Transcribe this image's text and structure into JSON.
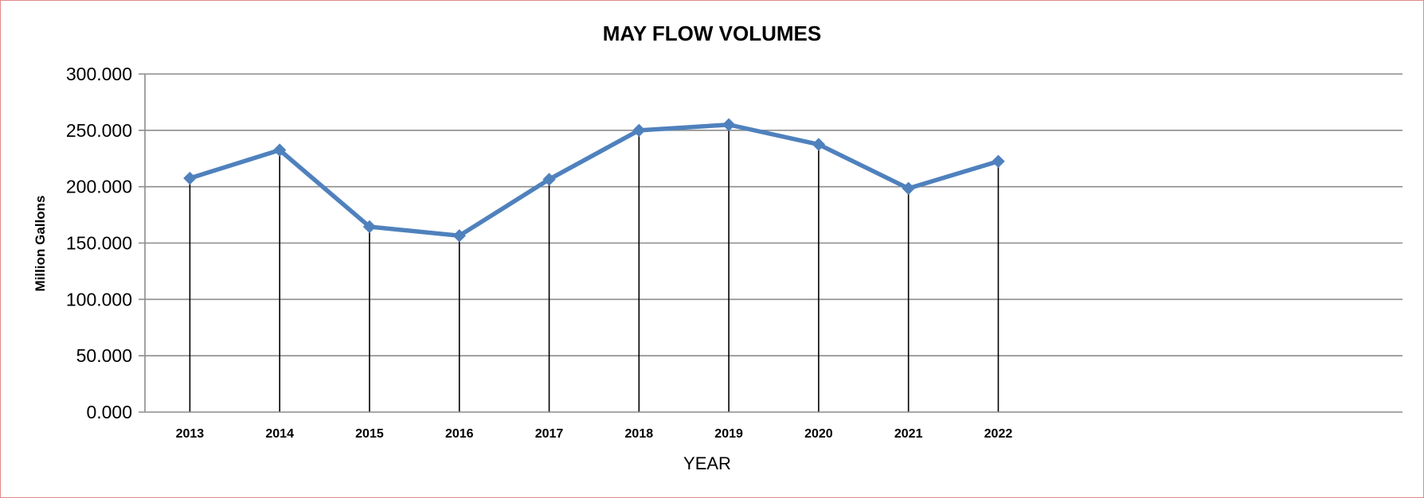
{
  "chart_data": {
    "type": "line",
    "title": "MAY FLOW VOLUMES",
    "xlabel": "YEAR",
    "ylabel": "Million Gallons",
    "categories": [
      "2013",
      "2014",
      "2015",
      "2016",
      "2017",
      "2018",
      "2019",
      "2020",
      "2021",
      "2022",
      "",
      "",
      "",
      ""
    ],
    "series": [
      {
        "values": [
          207.5,
          232.5,
          164.5,
          156.5,
          206.5,
          250.0,
          255.0,
          237.5,
          198.5,
          222.5,
          null,
          null,
          null,
          null
        ],
        "color": "#4f81bd",
        "marker": "diamond"
      }
    ],
    "ylim": [
      0,
      300
    ],
    "yticks": [
      "0.000",
      "50.000",
      "100.000",
      "150.000",
      "200.000",
      "250.000",
      "300.000"
    ],
    "drop_lines": true,
    "grid": true,
    "legend": "none",
    "colors": {
      "grid": "#8c8c8c",
      "drop_line": "#000000",
      "axis": "#8c8c8c",
      "frame_border": "#e08a8a"
    }
  }
}
